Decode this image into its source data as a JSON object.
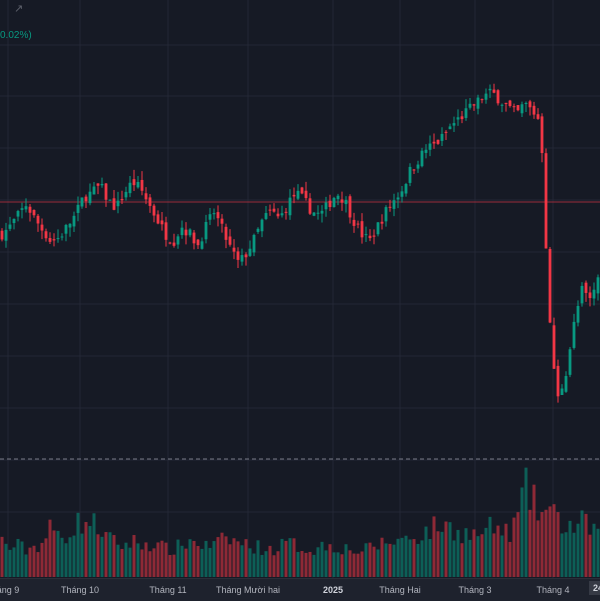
{
  "header": {
    "undo_icon": "redo-arrow-icon",
    "change_pct": "0.02%)"
  },
  "colors": {
    "up": "#089981",
    "down": "#f23645",
    "grid": "#232735",
    "background": "#161a25",
    "price_line": "#9b2c3a",
    "dashed_line": "#787b86"
  },
  "axis": {
    "ticks": [
      "áng 9",
      "Tháng 10",
      "Tháng 11",
      "Tháng Mười hai",
      "2025",
      "Tháng Hai",
      "Tháng 3",
      "Tháng 4"
    ],
    "year_tick": "2025",
    "cursor_label": "24"
  },
  "chart_data": {
    "type": "candlestick",
    "period": "daily",
    "x_labels": [
      "áng 9",
      "Tháng 10",
      "Tháng 11",
      "Tháng Mười hai",
      "2025",
      "Tháng Hai",
      "Tháng 3",
      "Tháng 4"
    ],
    "close_path": [
      10,
      12,
      15,
      18,
      14,
      11,
      8,
      9,
      12,
      15,
      20,
      21,
      23,
      19,
      17,
      21,
      24,
      22,
      18,
      14,
      10,
      8,
      12,
      10,
      7,
      12,
      16,
      11,
      6,
      2,
      5,
      9,
      14,
      16,
      14,
      18,
      21,
      19,
      16,
      15,
      18,
      21,
      19,
      14,
      10,
      8,
      12,
      16,
      19,
      22,
      27,
      30,
      33,
      34,
      36,
      39,
      41,
      43,
      45,
      47,
      48,
      46,
      44,
      42,
      45,
      43,
      40,
      -12,
      -35,
      -28,
      -15,
      -5,
      -8,
      -2
    ],
    "volume_path": [
      40,
      32,
      35,
      30,
      34,
      38,
      55,
      45,
      48,
      58,
      62,
      60,
      55,
      42,
      38,
      35,
      40,
      36,
      38,
      34,
      32,
      30,
      36,
      40,
      38,
      34,
      36,
      40,
      42,
      38,
      36,
      34,
      32,
      30,
      34,
      38,
      35,
      32,
      30,
      34,
      36,
      34,
      32,
      30,
      28,
      32,
      36,
      38,
      40,
      42,
      44,
      46,
      50,
      55,
      58,
      54,
      50,
      48,
      46,
      50,
      55,
      52,
      48,
      60,
      100,
      85,
      70,
      75,
      62,
      58,
      55,
      60,
      56,
      52
    ]
  }
}
